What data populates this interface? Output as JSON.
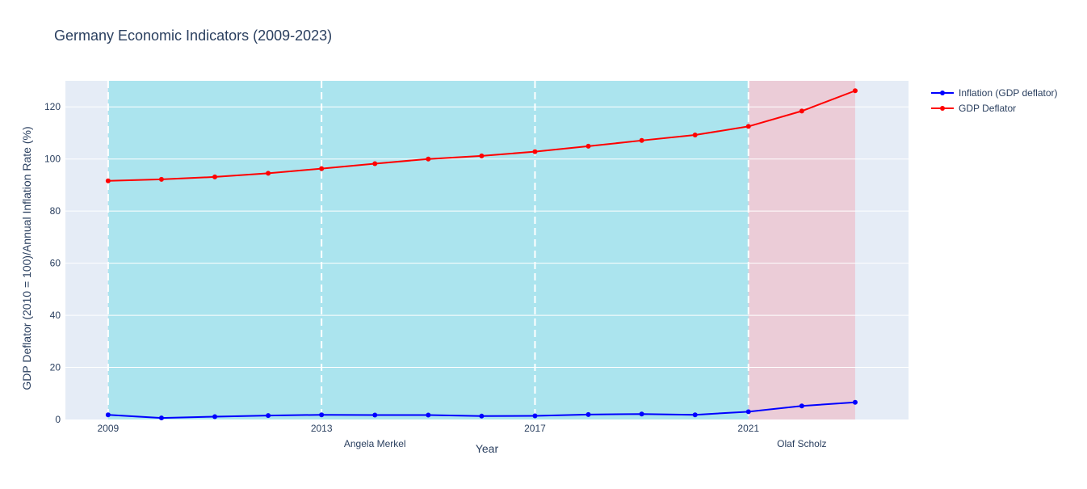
{
  "chart_data": {
    "type": "line",
    "title": "Germany Economic Indicators (2009-2023)",
    "xlabel": "Year",
    "ylabel": "GDP Deflator (2010 = 100)/Annual Inflation Rate (%)",
    "xlim": [
      2008.2,
      2024.0
    ],
    "ylim": [
      0,
      130
    ],
    "x_ticks": [
      2009,
      2013,
      2017,
      2021
    ],
    "y_ticks": [
      0,
      20,
      40,
      60,
      80,
      100,
      120
    ],
    "grid": true,
    "legend_position": "top-right",
    "x": [
      2009,
      2010,
      2011,
      2012,
      2013,
      2014,
      2015,
      2016,
      2017,
      2018,
      2019,
      2020,
      2021,
      2022,
      2023
    ],
    "series": [
      {
        "name": "Inflation (GDP deflator)",
        "color": "#0000ff",
        "values": [
          1.8,
          0.6,
          1.1,
          1.5,
          1.8,
          1.7,
          1.7,
          1.3,
          1.4,
          1.9,
          2.1,
          1.8,
          3.0,
          5.2,
          6.6
        ]
      },
      {
        "name": "GDP Deflator",
        "color": "#ff0000",
        "values": [
          91.6,
          92.2,
          93.1,
          94.5,
          96.3,
          98.2,
          100.0,
          101.2,
          102.8,
          104.9,
          107.1,
          109.2,
          112.5,
          118.4,
          126.2
        ]
      }
    ],
    "shaded_regions": [
      {
        "label": "Angela Merkel",
        "x0": 2009,
        "x1": 2021,
        "color": "#00ccd6",
        "label_x": 2014
      },
      {
        "label": "Olaf Scholz",
        "x0": 2021,
        "x1": 2023,
        "color": "#ff6b7a",
        "label_x": 2022
      }
    ],
    "vlines": [
      2009,
      2013,
      2017,
      2021
    ]
  }
}
